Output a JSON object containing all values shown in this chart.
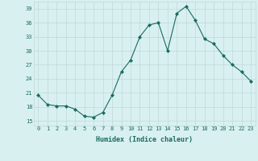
{
  "x": [
    0,
    1,
    2,
    3,
    4,
    5,
    6,
    7,
    8,
    9,
    10,
    11,
    12,
    13,
    14,
    15,
    16,
    17,
    18,
    19,
    20,
    21,
    22,
    23
  ],
  "y": [
    20.5,
    18.5,
    18.2,
    18.2,
    17.5,
    16.0,
    15.8,
    16.8,
    20.5,
    25.5,
    28.0,
    33.0,
    35.5,
    36.0,
    30.0,
    38.0,
    39.5,
    36.5,
    32.5,
    31.5,
    29.0,
    27.0,
    25.5,
    23.5
  ],
  "line_color": "#1a6b5e",
  "marker": "D",
  "marker_size": 2.0,
  "bg_color": "#d8f0f0",
  "grid_color": "#c0d8d8",
  "xlabel": "Humidex (Indice chaleur)",
  "xlabel_color": "#1a6b5e",
  "yticks": [
    15,
    18,
    21,
    24,
    27,
    30,
    33,
    36,
    39
  ],
  "xticks": [
    0,
    1,
    2,
    3,
    4,
    5,
    6,
    7,
    8,
    9,
    10,
    11,
    12,
    13,
    14,
    15,
    16,
    17,
    18,
    19,
    20,
    21,
    22,
    23
  ],
  "xlim": [
    -0.5,
    23.5
  ],
  "ylim": [
    14,
    40.5
  ],
  "tick_fontsize": 5.0,
  "xlabel_fontsize": 6.0
}
